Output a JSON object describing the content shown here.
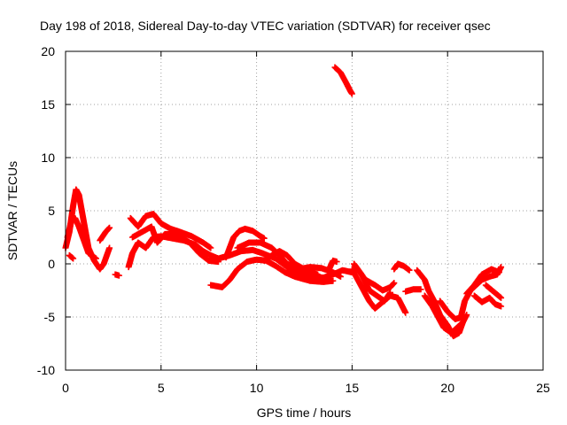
{
  "chart_data": {
    "type": "scatter",
    "title": "Day 198 of 2018, Sidereal Day-to-day VTEC variation (SDTVAR) for receiver qsec",
    "xlabel": "GPS time / hours",
    "ylabel": "SDTVAR / TECUs",
    "xlim": [
      0,
      25
    ],
    "ylim": [
      -10,
      20
    ],
    "xticks": [
      0,
      5,
      10,
      15,
      20,
      25
    ],
    "yticks": [
      -10,
      -5,
      0,
      5,
      10,
      15,
      20
    ],
    "xtick_labels": [
      "0",
      "5",
      "10",
      "15",
      "20",
      "25"
    ],
    "ytick_labels": [
      "-10",
      "-5",
      "0",
      "5",
      "10",
      "15",
      "20"
    ],
    "grid": true,
    "marker": "+",
    "series": [
      {
        "name": "SDTVAR",
        "color": "#ff0000",
        "tracks": [
          [
            [
              0.0,
              1.5
            ],
            [
              0.2,
              3.0
            ],
            [
              0.4,
              5.5
            ],
            [
              0.55,
              7.0
            ],
            [
              0.7,
              6.5
            ],
            [
              0.85,
              5.0
            ],
            [
              1.0,
              3.5
            ],
            [
              1.2,
              1.5
            ],
            [
              1.5,
              0.3
            ],
            [
              1.8,
              -0.5
            ],
            [
              2.0,
              0.0
            ],
            [
              2.3,
              1.5
            ]
          ],
          [
            [
              0.1,
              2.5
            ],
            [
              0.3,
              4.0
            ],
            [
              0.5,
              4.3
            ],
            [
              0.7,
              3.5
            ],
            [
              0.9,
              2.5
            ],
            [
              1.2,
              1.0
            ],
            [
              1.6,
              0.5
            ]
          ],
          [
            [
              0.2,
              0.8
            ],
            [
              0.4,
              0.5
            ]
          ],
          [
            [
              1.8,
              2.2
            ],
            [
              2.1,
              3.0
            ],
            [
              2.3,
              3.4
            ]
          ],
          [
            [
              2.6,
              -1.0
            ],
            [
              2.8,
              -1.1
            ]
          ],
          [
            [
              3.3,
              -0.3
            ],
            [
              3.5,
              1.0
            ],
            [
              3.8,
              2.0
            ],
            [
              4.2,
              1.5
            ],
            [
              4.6,
              2.5
            ],
            [
              5.0,
              2.6
            ],
            [
              5.6,
              2.4
            ],
            [
              6.2,
              2.2
            ],
            [
              6.8,
              1.8
            ],
            [
              7.2,
              1.2
            ],
            [
              7.6,
              0.8
            ],
            [
              8.0,
              0.5
            ],
            [
              8.6,
              0.8
            ],
            [
              9.2,
              1.2
            ],
            [
              9.8,
              1.3
            ],
            [
              10.3,
              1.0
            ],
            [
              11.0,
              0.5
            ],
            [
              11.6,
              -0.3
            ],
            [
              12.2,
              -0.8
            ],
            [
              12.8,
              -1.2
            ],
            [
              13.5,
              -1.3
            ],
            [
              14.0,
              -1.0
            ],
            [
              14.5,
              -0.6
            ],
            [
              15.0,
              -0.8
            ]
          ],
          [
            [
              3.4,
              4.3
            ],
            [
              3.8,
              3.5
            ],
            [
              4.2,
              4.5
            ],
            [
              4.6,
              4.7
            ],
            [
              5.0,
              3.8
            ],
            [
              5.5,
              3.3
            ],
            [
              6.0,
              3.0
            ],
            [
              6.6,
              2.6
            ],
            [
              7.2,
              2.0
            ],
            [
              7.6,
              1.5
            ]
          ],
          [
            [
              3.5,
              2.5
            ],
            [
              4.0,
              3.0
            ],
            [
              4.5,
              3.5
            ],
            [
              4.8,
              2.0
            ],
            [
              5.2,
              2.8
            ],
            [
              5.8,
              2.8
            ],
            [
              6.5,
              2.0
            ],
            [
              7.0,
              1.0
            ],
            [
              7.5,
              0.3
            ],
            [
              8.0,
              0.2
            ]
          ],
          [
            [
              7.6,
              -2.0
            ],
            [
              8.2,
              -2.2
            ],
            [
              8.6,
              -1.5
            ],
            [
              9.0,
              -0.5
            ],
            [
              9.5,
              0.2
            ],
            [
              10.0,
              0.4
            ],
            [
              10.5,
              0.3
            ],
            [
              11.0,
              -0.2
            ],
            [
              11.5,
              -0.8
            ],
            [
              12.0,
              -1.2
            ],
            [
              12.8,
              -1.6
            ],
            [
              13.5,
              -1.7
            ],
            [
              14.0,
              -1.6
            ]
          ],
          [
            [
              8.4,
              0.6
            ],
            [
              8.8,
              2.5
            ],
            [
              9.1,
              3.1
            ],
            [
              9.4,
              3.3
            ],
            [
              9.8,
              3.1
            ],
            [
              10.2,
              2.6
            ],
            [
              10.4,
              2.4
            ]
          ],
          [
            [
              9.0,
              1.5
            ],
            [
              9.6,
              2.0
            ],
            [
              10.2,
              2.0
            ],
            [
              10.8,
              1.5
            ],
            [
              11.2,
              0.8
            ],
            [
              11.6,
              0.0
            ],
            [
              12.2,
              -0.5
            ],
            [
              12.8,
              -0.3
            ],
            [
              13.4,
              -0.4
            ],
            [
              14.0,
              -0.8
            ],
            [
              14.4,
              -1.2
            ]
          ],
          [
            [
              10.4,
              0.3
            ],
            [
              10.8,
              0.8
            ],
            [
              11.2,
              1.2
            ],
            [
              11.6,
              0.8
            ],
            [
              12.0,
              0.0
            ],
            [
              12.6,
              -0.6
            ],
            [
              13.2,
              -1.0
            ]
          ],
          [
            [
              13.8,
              -0.5
            ],
            [
              14.0,
              0.3
            ],
            [
              14.2,
              0.2
            ]
          ],
          [
            [
              14.1,
              18.5
            ],
            [
              14.4,
              18.0
            ],
            [
              14.7,
              17.0
            ],
            [
              14.9,
              16.3
            ],
            [
              15.0,
              16.0
            ]
          ],
          [
            [
              15.0,
              -0.5
            ],
            [
              15.3,
              -1.5
            ],
            [
              15.6,
              -2.5
            ],
            [
              15.9,
              -3.5
            ],
            [
              16.2,
              -4.2
            ],
            [
              16.6,
              -3.6
            ],
            [
              17.0,
              -3.0
            ],
            [
              17.4,
              -3.2
            ],
            [
              17.8,
              -4.6
            ]
          ],
          [
            [
              15.2,
              -0.3
            ],
            [
              15.7,
              -1.5
            ],
            [
              16.2,
              -2.0
            ],
            [
              16.6,
              -2.5
            ],
            [
              17.0,
              -2.2
            ],
            [
              17.2,
              -1.8
            ]
          ],
          [
            [
              15.1,
              0.0
            ],
            [
              15.5,
              -1.0
            ],
            [
              15.9,
              -2.5
            ],
            [
              16.3,
              -3.0
            ],
            [
              16.7,
              -3.5
            ],
            [
              17.0,
              -2.7
            ]
          ],
          [
            [
              17.2,
              -0.5
            ],
            [
              17.4,
              0.0
            ],
            [
              17.7,
              -0.2
            ],
            [
              18.0,
              -0.6
            ]
          ],
          [
            [
              17.8,
              -2.6
            ],
            [
              18.2,
              -2.4
            ],
            [
              18.6,
              -2.4
            ]
          ],
          [
            [
              18.4,
              -0.6
            ],
            [
              18.8,
              -1.5
            ],
            [
              19.0,
              -2.5
            ],
            [
              19.3,
              -3.5
            ],
            [
              19.6,
              -4.8
            ],
            [
              20.0,
              -5.8
            ],
            [
              20.3,
              -6.8
            ],
            [
              20.6,
              -6.5
            ],
            [
              20.8,
              -5.5
            ],
            [
              21.0,
              -4.8
            ]
          ],
          [
            [
              18.8,
              -3.0
            ],
            [
              19.2,
              -4.0
            ],
            [
              19.5,
              -5.0
            ],
            [
              19.8,
              -6.0
            ],
            [
              20.2,
              -6.5
            ],
            [
              20.5,
              -6.0
            ],
            [
              20.8,
              -5.5
            ]
          ],
          [
            [
              19.6,
              -3.5
            ],
            [
              20.0,
              -4.5
            ],
            [
              20.4,
              -5.2
            ],
            [
              20.8,
              -5.0
            ]
          ],
          [
            [
              20.7,
              -5.0
            ],
            [
              20.9,
              -3.5
            ],
            [
              21.2,
              -2.5
            ],
            [
              21.5,
              -2.0
            ],
            [
              21.8,
              -1.5
            ],
            [
              22.2,
              -1.2
            ],
            [
              22.6,
              -1.0
            ],
            [
              22.8,
              -0.3
            ]
          ],
          [
            [
              21.0,
              -2.8
            ],
            [
              21.4,
              -2.0
            ],
            [
              21.8,
              -1.0
            ],
            [
              22.3,
              -0.5
            ],
            [
              22.7,
              -0.8
            ]
          ],
          [
            [
              21.4,
              -3.0
            ],
            [
              21.8,
              -3.6
            ],
            [
              22.2,
              -3.2
            ],
            [
              22.5,
              -3.8
            ],
            [
              22.8,
              -4.0
            ]
          ],
          [
            [
              22.0,
              -2.0
            ],
            [
              22.4,
              -2.6
            ],
            [
              22.8,
              -3.2
            ]
          ]
        ]
      }
    ]
  }
}
